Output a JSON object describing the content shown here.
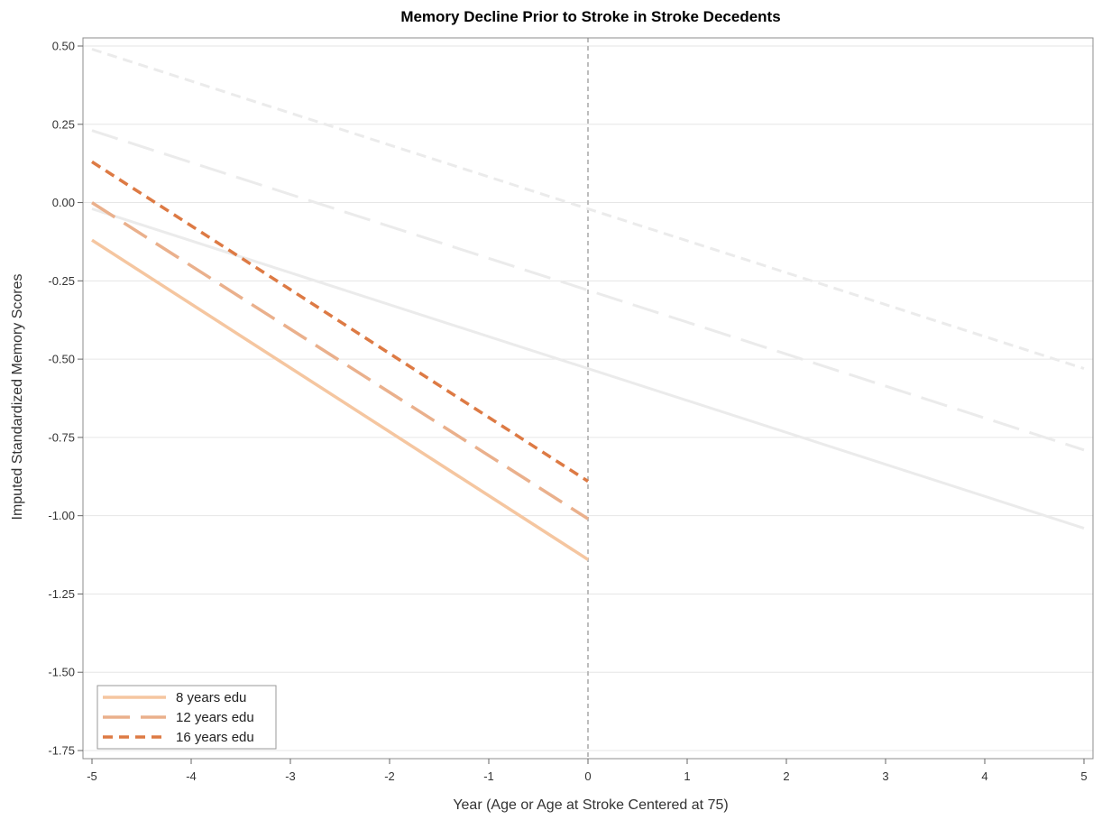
{
  "chart_data": {
    "type": "line",
    "title": "Memory Decline Prior to Stroke in Stroke Decedents",
    "xlabel": "Year (Age or Age at Stroke Centered at 75)",
    "ylabel": "Imputed Standardized Memory Scores",
    "xlim": [
      -5,
      5
    ],
    "ylim": [
      -1.75,
      0.5
    ],
    "xticks": [
      -5,
      -4,
      -3,
      -2,
      -1,
      0,
      1,
      2,
      3,
      4,
      5
    ],
    "xtick_labels": [
      "-5",
      "-4",
      "-3",
      "-2",
      "-1",
      "0",
      "1",
      "2",
      "3",
      "4",
      "5"
    ],
    "yticks": [
      0.5,
      0.25,
      0.0,
      -0.25,
      -0.5,
      -0.75,
      -1.0,
      -1.25,
      -1.5,
      -1.75
    ],
    "ytick_labels": [
      "0.50",
      "0.25",
      "0.00",
      "-0.25",
      "-0.50",
      "-0.75",
      "-1.00",
      "-1.25",
      "-1.50",
      "-1.75"
    ],
    "grid": true,
    "reference_line_x": 0,
    "legend_position": "bottom-left",
    "series": [
      {
        "name": "8 years edu",
        "color": "#f5c6a0",
        "dash": "solid",
        "x": [
          -5,
          0
        ],
        "y": [
          -0.12,
          -1.14
        ]
      },
      {
        "name": "12 years edu",
        "color": "#eab08c",
        "dash": "long-dash",
        "x": [
          -5,
          0
        ],
        "y": [
          0.0,
          -1.01
        ]
      },
      {
        "name": "16 years edu",
        "color": "#dd7a44",
        "dash": "short-dash",
        "x": [
          -5,
          0
        ],
        "y": [
          0.13,
          -0.89
        ]
      }
    ],
    "background_series": [
      {
        "color": "#ebebeb",
        "dash": "solid",
        "x": [
          -5,
          5
        ],
        "y": [
          -0.02,
          -1.04
        ]
      },
      {
        "color": "#ebebeb",
        "dash": "long-dash",
        "x": [
          -5,
          5
        ],
        "y": [
          0.23,
          -0.79
        ]
      },
      {
        "color": "#ebebeb",
        "dash": "short-dash",
        "x": [
          -5,
          5
        ],
        "y": [
          0.49,
          -0.53
        ]
      }
    ]
  }
}
